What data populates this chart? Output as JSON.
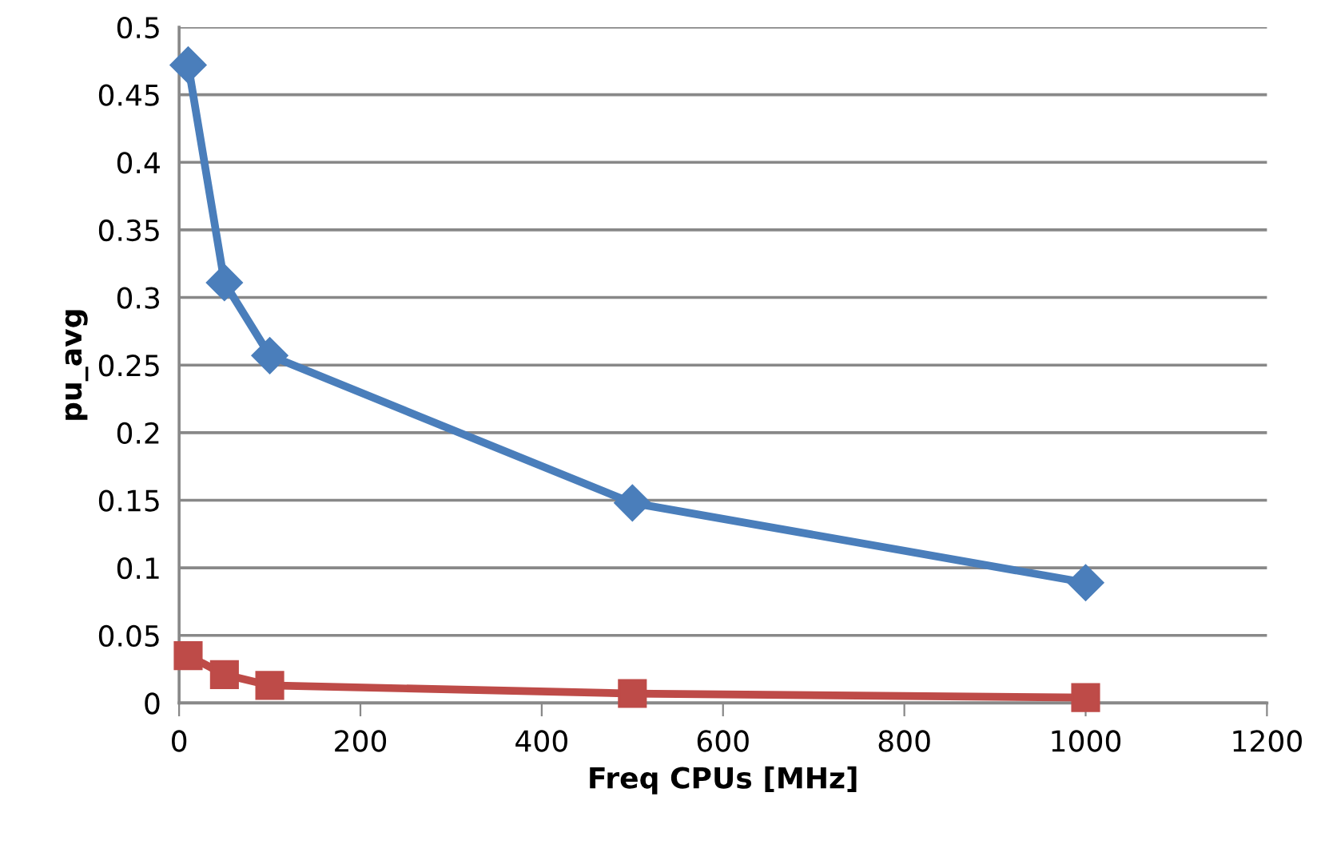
{
  "chart_data": {
    "type": "line",
    "xlabel": "Freq CPUs [MHz]",
    "ylabel": "pu_avg",
    "x": [
      10,
      50,
      100,
      500,
      1000
    ],
    "series": [
      {
        "color": "#4a7ebb",
        "marker": "diamond",
        "values": [
          0.472,
          0.311,
          0.257,
          0.148,
          0.089
        ]
      },
      {
        "color": "#be4b48",
        "marker": "square",
        "values": [
          0.035,
          0.021,
          0.013,
          0.007,
          0.004
        ]
      }
    ],
    "xlim": [
      0,
      1200
    ],
    "xticks": [
      0,
      200,
      400,
      600,
      800,
      1000,
      1200
    ],
    "ylim": [
      0,
      0.5
    ],
    "yticks": [
      0,
      0.05,
      0.1,
      0.15,
      0.2,
      0.25,
      0.3,
      0.35,
      0.4,
      0.45,
      0.5
    ],
    "grid": "y",
    "line_style": "solid"
  }
}
